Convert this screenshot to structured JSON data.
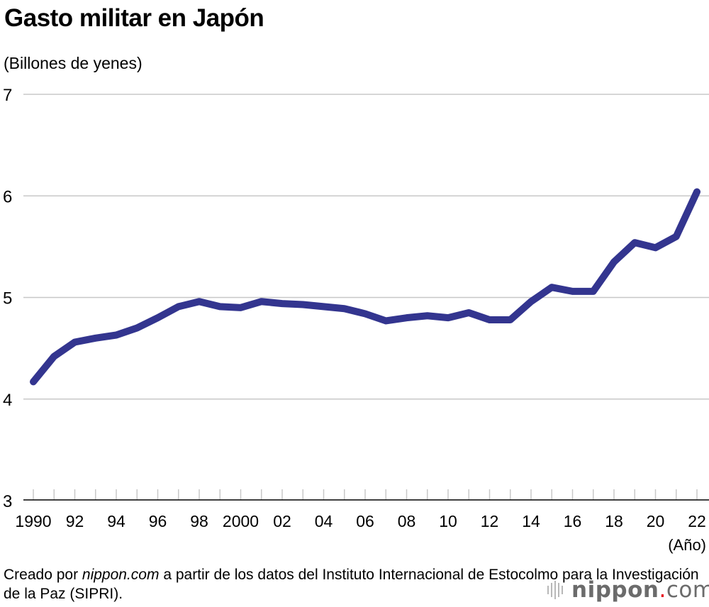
{
  "title": "Gasto militar en Japón",
  "source_prefix": "Creado por ",
  "source_site": "nippon.com",
  "source_rest": " a partir de los datos del Instituto Internacional de Estocolmo para la Investigación de la Paz (SIPRI).",
  "logo": "nippon.com",
  "chart_data": {
    "type": "line",
    "title": "Gasto militar en Japón",
    "ylabel": "(Billones de yenes)",
    "xlabel": "(Año)",
    "ylim": [
      3,
      7
    ],
    "yticks": [
      3,
      4,
      5,
      6,
      7
    ],
    "xlim": [
      1990,
      2022
    ],
    "xtick_labels": [
      {
        "year": 1990,
        "label": "1990"
      },
      {
        "year": 1992,
        "label": "92"
      },
      {
        "year": 1994,
        "label": "94"
      },
      {
        "year": 1996,
        "label": "96"
      },
      {
        "year": 1998,
        "label": "98"
      },
      {
        "year": 2000,
        "label": "2000"
      },
      {
        "year": 2002,
        "label": "02"
      },
      {
        "year": 2004,
        "label": "04"
      },
      {
        "year": 2006,
        "label": "06"
      },
      {
        "year": 2008,
        "label": "08"
      },
      {
        "year": 2010,
        "label": "10"
      },
      {
        "year": 2012,
        "label": "12"
      },
      {
        "year": 2014,
        "label": "14"
      },
      {
        "year": 2016,
        "label": "16"
      },
      {
        "year": 2018,
        "label": "18"
      },
      {
        "year": 2020,
        "label": "20"
      },
      {
        "year": 2022,
        "label": "22"
      }
    ],
    "grid": true,
    "line_color": "#33358f",
    "x": [
      1990,
      1991,
      1992,
      1993,
      1994,
      1995,
      1996,
      1997,
      1998,
      1999,
      2000,
      2001,
      2002,
      2003,
      2004,
      2005,
      2006,
      2007,
      2008,
      2009,
      2010,
      2011,
      2012,
      2013,
      2014,
      2015,
      2016,
      2017,
      2018,
      2019,
      2020,
      2021,
      2022
    ],
    "series": [
      {
        "values": [
          4.17,
          4.42,
          4.56,
          4.6,
          4.63,
          4.7,
          4.8,
          4.91,
          4.96,
          4.91,
          4.9,
          4.96,
          4.94,
          4.93,
          4.91,
          4.89,
          4.84,
          4.77,
          4.8,
          4.82,
          4.8,
          4.85,
          4.78,
          4.78,
          4.96,
          5.1,
          5.06,
          5.06,
          5.35,
          5.54,
          5.49,
          5.6,
          6.04
        ]
      }
    ]
  }
}
